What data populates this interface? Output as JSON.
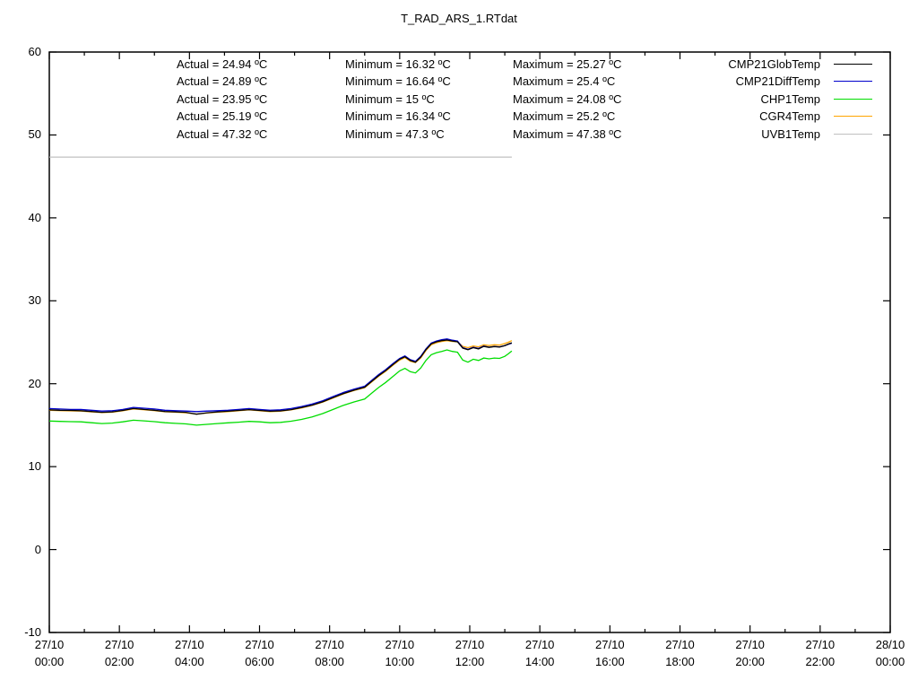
{
  "title": "T_RAD_ARS_1.RTdat",
  "colors": {
    "background": "#ffffff",
    "axis": "#000000",
    "text": "#000000",
    "cmp21glob": "#000000",
    "cmp21diff": "#0000cc",
    "chp1": "#00dd00",
    "cgr4": "#ffa500",
    "uvb1": "#c0c0c0"
  },
  "stats": {
    "rows": [
      {
        "series": "CMP21GlobTemp",
        "actual": "Actual = 24.94 ºC",
        "minimum": "Minimum = 16.32 ºC",
        "maximum": "Maximum = 25.27 ºC"
      },
      {
        "series": "CMP21DiffTemp",
        "actual": "Actual = 24.89 ºC",
        "minimum": "Minimum = 16.64 ºC",
        "maximum": "Maximum = 25.4 ºC"
      },
      {
        "series": "CHP1Temp",
        "actual": "Actual = 23.95 ºC",
        "minimum": "Minimum = 15 ºC",
        "maximum": "Maximum = 24.08 ºC"
      },
      {
        "series": "CGR4Temp",
        "actual": "Actual = 25.19 ºC",
        "minimum": "Minimum = 16.34 ºC",
        "maximum": "Maximum = 25.2 ºC"
      },
      {
        "series": "UVB1Temp",
        "actual": "Actual = 47.32 ºC",
        "minimum": "Minimum = 47.3 ºC",
        "maximum": "Maximum = 47.38 ºC"
      }
    ]
  },
  "legend": {
    "entries": [
      {
        "label": "CMP21GlobTemp",
        "color": "#000000"
      },
      {
        "label": "CMP21DiffTemp",
        "color": "#0000cc"
      },
      {
        "label": "CHP1Temp",
        "color": "#00dd00"
      },
      {
        "label": "CGR4Temp",
        "color": "#ffa500"
      },
      {
        "label": "UVB1Temp",
        "color": "#c0c0c0"
      }
    ]
  },
  "chart_data": {
    "type": "line",
    "title": "T_RAD_ARS_1.RTdat",
    "xlabel": "",
    "ylabel": "",
    "xlim_hours": [
      0,
      24
    ],
    "ylim": [
      -10,
      60
    ],
    "grid": false,
    "legend_position": "top-right",
    "y_ticks": [
      -10,
      0,
      10,
      20,
      30,
      40,
      50,
      60
    ],
    "x_tick_labels": [
      {
        "date": "27/10",
        "time": "00:00"
      },
      {
        "date": "27/10",
        "time": "02:00"
      },
      {
        "date": "27/10",
        "time": "04:00"
      },
      {
        "date": "27/10",
        "time": "06:00"
      },
      {
        "date": "27/10",
        "time": "08:00"
      },
      {
        "date": "27/10",
        "time": "10:00"
      },
      {
        "date": "27/10",
        "time": "12:00"
      },
      {
        "date": "27/10",
        "time": "14:00"
      },
      {
        "date": "27/10",
        "time": "16:00"
      },
      {
        "date": "27/10",
        "time": "18:00"
      },
      {
        "date": "27/10",
        "time": "20:00"
      },
      {
        "date": "27/10",
        "time": "22:00"
      },
      {
        "date": "28/10",
        "time": "00:00"
      }
    ],
    "series": [
      {
        "name": "CMP21GlobTemp",
        "color": "#000000",
        "x": [
          0,
          0.3,
          0.6,
          0.9,
          1.2,
          1.5,
          1.8,
          2.1,
          2.4,
          2.7,
          3,
          3.3,
          3.6,
          3.9,
          4.2,
          4.5,
          4.8,
          5.1,
          5.4,
          5.7,
          6,
          6.3,
          6.6,
          6.9,
          7.2,
          7.5,
          7.8,
          8.1,
          8.4,
          8.7,
          9,
          9.2,
          9.4,
          9.6,
          9.8,
          10,
          10.15,
          10.3,
          10.45,
          10.6,
          10.75,
          10.9,
          11.05,
          11.2,
          11.35,
          11.5,
          11.65,
          11.8,
          11.95,
          12.1,
          12.25,
          12.4,
          12.55,
          12.7,
          12.85,
          13,
          13.1,
          13.2
        ],
        "y": [
          16.85,
          16.8,
          16.78,
          16.75,
          16.65,
          16.55,
          16.6,
          16.78,
          17,
          16.9,
          16.8,
          16.65,
          16.6,
          16.55,
          16.32,
          16.5,
          16.6,
          16.68,
          16.78,
          16.88,
          16.78,
          16.68,
          16.72,
          16.88,
          17.12,
          17.42,
          17.82,
          18.32,
          18.82,
          19.22,
          19.58,
          20.28,
          20.98,
          21.58,
          22.28,
          22.95,
          23.25,
          22.8,
          22.6,
          23.2,
          24.1,
          24.8,
          25.05,
          25.2,
          25.27,
          25.15,
          25.05,
          24.3,
          24.1,
          24.35,
          24.2,
          24.5,
          24.38,
          24.48,
          24.42,
          24.6,
          24.78,
          24.94
        ]
      },
      {
        "name": "CMP21DiffTemp",
        "color": "#0000cc",
        "x": [
          0,
          0.3,
          0.6,
          0.9,
          1.2,
          1.5,
          1.8,
          2.1,
          2.4,
          2.7,
          3,
          3.3,
          3.6,
          3.9,
          4.2,
          4.5,
          4.8,
          5.1,
          5.4,
          5.7,
          6,
          6.3,
          6.6,
          6.9,
          7.2,
          7.5,
          7.8,
          8.1,
          8.4,
          8.7,
          9,
          9.2,
          9.4,
          9.6,
          9.8,
          10,
          10.15,
          10.3,
          10.45,
          10.6,
          10.75,
          10.9,
          11.05,
          11.2,
          11.35,
          11.5,
          11.65,
          11.8,
          11.95,
          12.1,
          12.25,
          12.4,
          12.55,
          12.7,
          12.85,
          13,
          13.1,
          13.2
        ],
        "y": [
          17,
          16.95,
          16.9,
          16.9,
          16.8,
          16.7,
          16.75,
          16.9,
          17.15,
          17.05,
          16.95,
          16.8,
          16.75,
          16.7,
          16.64,
          16.7,
          16.75,
          16.8,
          16.9,
          17,
          16.9,
          16.8,
          16.85,
          17,
          17.25,
          17.55,
          17.95,
          18.45,
          18.95,
          19.35,
          19.7,
          20.4,
          21.1,
          21.7,
          22.4,
          23.05,
          23.35,
          22.9,
          22.7,
          23.3,
          24.2,
          24.9,
          25.15,
          25.3,
          25.4,
          25.25,
          25.15,
          24.35,
          24.15,
          24.4,
          24.25,
          24.55,
          24.4,
          24.5,
          24.45,
          24.6,
          24.75,
          24.89
        ]
      },
      {
        "name": "CHP1Temp",
        "color": "#00dd00",
        "x": [
          0,
          0.3,
          0.6,
          0.9,
          1.2,
          1.5,
          1.8,
          2.1,
          2.4,
          2.7,
          3,
          3.3,
          3.6,
          3.9,
          4.2,
          4.5,
          4.8,
          5.1,
          5.4,
          5.7,
          6,
          6.3,
          6.6,
          6.9,
          7.2,
          7.5,
          7.8,
          8.1,
          8.4,
          8.7,
          9,
          9.2,
          9.4,
          9.6,
          9.8,
          10,
          10.15,
          10.3,
          10.45,
          10.6,
          10.75,
          10.9,
          11.05,
          11.2,
          11.35,
          11.5,
          11.65,
          11.8,
          11.95,
          12.1,
          12.25,
          12.4,
          12.55,
          12.7,
          12.85,
          13,
          13.1,
          13.2
        ],
        "y": [
          15.5,
          15.46,
          15.42,
          15.4,
          15.3,
          15.2,
          15.25,
          15.4,
          15.6,
          15.52,
          15.42,
          15.3,
          15.22,
          15.15,
          15,
          15.1,
          15.2,
          15.28,
          15.36,
          15.46,
          15.4,
          15.3,
          15.34,
          15.48,
          15.7,
          16,
          16.4,
          16.9,
          17.4,
          17.8,
          18.15,
          18.85,
          19.55,
          20.15,
          20.85,
          21.55,
          21.85,
          21.45,
          21.3,
          21.9,
          22.8,
          23.5,
          23.75,
          23.9,
          24.08,
          23.9,
          23.8,
          22.85,
          22.6,
          22.95,
          22.8,
          23.1,
          23,
          23.1,
          23.05,
          23.3,
          23.6,
          23.95
        ]
      },
      {
        "name": "CGR4Temp",
        "color": "#ffa500",
        "x": [
          0,
          0.3,
          0.6,
          0.9,
          1.2,
          1.5,
          1.8,
          2.1,
          2.4,
          2.7,
          3,
          3.3,
          3.6,
          3.9,
          4.2,
          4.5,
          4.8,
          5.1,
          5.4,
          5.7,
          6,
          6.3,
          6.6,
          6.9,
          7.2,
          7.5,
          7.8,
          8.1,
          8.4,
          8.7,
          9,
          9.2,
          9.4,
          9.6,
          9.8,
          10,
          10.15,
          10.3,
          10.45,
          10.6,
          10.75,
          10.9,
          11.05,
          11.2,
          11.35,
          11.5,
          11.65,
          11.8,
          11.95,
          12.1,
          12.25,
          12.4,
          12.55,
          12.7,
          12.85,
          13,
          13.1,
          13.2
        ],
        "y": [
          16.8,
          16.76,
          16.72,
          16.7,
          16.6,
          16.52,
          16.56,
          16.74,
          16.95,
          16.86,
          16.76,
          16.62,
          16.56,
          16.5,
          16.34,
          16.46,
          16.56,
          16.64,
          16.74,
          16.84,
          16.74,
          16.64,
          16.68,
          16.84,
          17.08,
          17.38,
          17.78,
          18.28,
          18.78,
          19.18,
          19.52,
          20.22,
          20.9,
          21.5,
          22.2,
          22.85,
          23.15,
          22.72,
          22.55,
          23.1,
          24,
          24.7,
          24.95,
          25.1,
          25.2,
          25.1,
          25.05,
          24.5,
          24.35,
          24.55,
          24.45,
          24.7,
          24.6,
          24.7,
          24.65,
          24.85,
          25,
          25.19
        ]
      },
      {
        "name": "UVB1Temp",
        "color": "#c0c0c0",
        "x": [
          0,
          13.2
        ],
        "y": [
          47.33,
          47.33
        ]
      }
    ]
  }
}
